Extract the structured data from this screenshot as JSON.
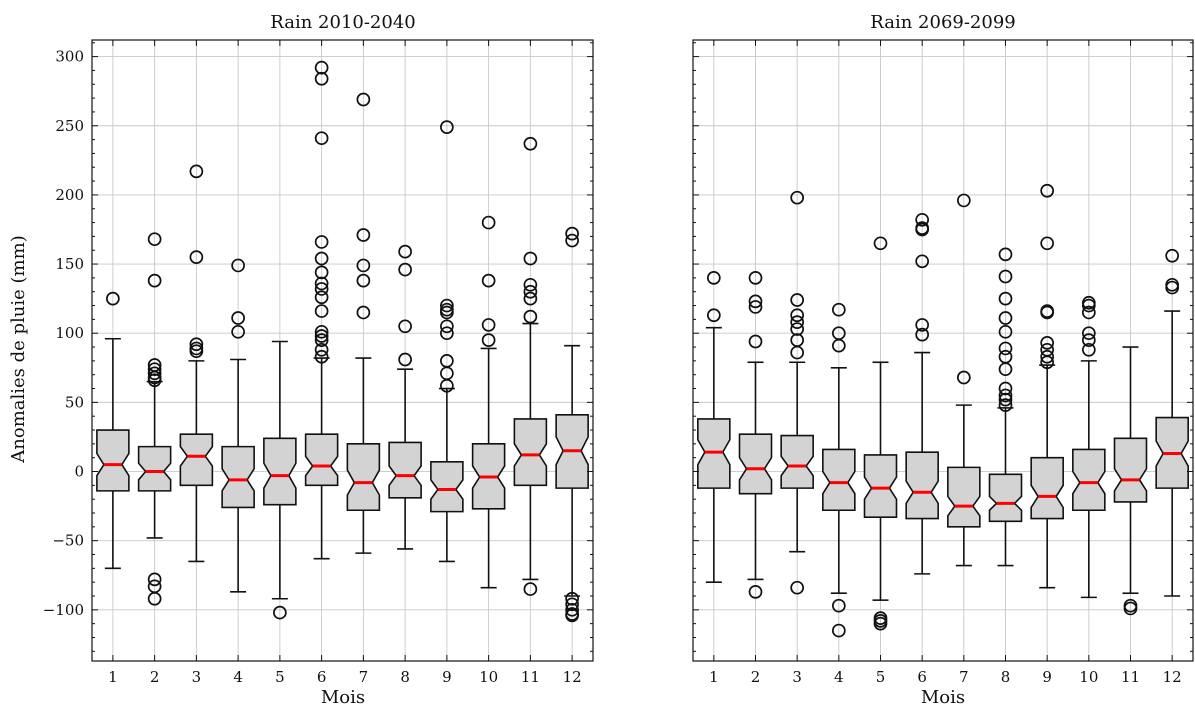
{
  "chart_data": [
    {
      "type": "box",
      "title": "Rain 2010-2040",
      "xlabel": "Mois",
      "ylabel": "Anomalies de pluie (mm)",
      "ylim": [
        -137,
        312
      ],
      "yticks": [
        -100,
        -50,
        0,
        50,
        100,
        150,
        200,
        250,
        300
      ],
      "ytick_labels": [
        "−100",
        "−50",
        "0",
        "50",
        "100",
        "150",
        "200",
        "250",
        "300"
      ],
      "categories": [
        "1",
        "2",
        "3",
        "4",
        "5",
        "6",
        "7",
        "8",
        "9",
        "10",
        "11",
        "12"
      ],
      "grid": true,
      "notched": true,
      "box_color": "#d3d3d3",
      "median_color": "#ff0000",
      "boxes": [
        {
          "whislo": -70,
          "q1": -14,
          "med": 5,
          "q3": 30,
          "whishi": 96,
          "notch": [
            -3,
            13
          ],
          "fliers": [
            125
          ]
        },
        {
          "whislo": -48,
          "q1": -14,
          "med": 0,
          "q3": 18,
          "whishi": 65,
          "notch": [
            -6,
            6
          ],
          "fliers": [
            168,
            138,
            77,
            74,
            71,
            68,
            66,
            -78,
            -83,
            -92
          ]
        },
        {
          "whislo": -65,
          "q1": -10,
          "med": 11,
          "q3": 27,
          "whishi": 80,
          "notch": [
            4,
            18
          ],
          "fliers": [
            217,
            155,
            92,
            89,
            87
          ]
        },
        {
          "whislo": -87,
          "q1": -26,
          "med": -6,
          "q3": 18,
          "whishi": 81,
          "notch": [
            -14,
            2
          ],
          "fliers": [
            149,
            111,
            101
          ]
        },
        {
          "whislo": -92,
          "q1": -24,
          "med": -3,
          "q3": 24,
          "whishi": 94,
          "notch": [
            -12,
            6
          ],
          "fliers": [
            -102
          ]
        },
        {
          "whislo": -63,
          "q1": -10,
          "med": 4,
          "q3": 27,
          "whishi": 82,
          "notch": [
            -3,
            11
          ],
          "fliers": [
            292,
            284,
            241,
            166,
            154,
            144,
            136,
            132,
            126,
            116,
            101,
            98,
            95,
            88,
            83
          ]
        },
        {
          "whislo": -59,
          "q1": -28,
          "med": -8,
          "q3": 20,
          "whishi": 82,
          "notch": [
            -17,
            1
          ],
          "fliers": [
            269,
            171,
            149,
            138,
            115
          ]
        },
        {
          "whislo": -56,
          "q1": -19,
          "med": -3,
          "q3": 21,
          "whishi": 74,
          "notch": [
            -10,
            4
          ],
          "fliers": [
            159,
            146,
            105,
            81
          ]
        },
        {
          "whislo": -65,
          "q1": -29,
          "med": -13,
          "q3": 7,
          "whishi": 60,
          "notch": [
            -20,
            -6
          ],
          "fliers": [
            249,
            120,
            117,
            115,
            105,
            100,
            80,
            71,
            62
          ]
        },
        {
          "whislo": -84,
          "q1": -27,
          "med": -4,
          "q3": 20,
          "whishi": 89,
          "notch": [
            -12,
            4
          ],
          "fliers": [
            180,
            138,
            106,
            95
          ]
        },
        {
          "whislo": -78,
          "q1": -10,
          "med": 12,
          "q3": 38,
          "whishi": 107,
          "notch": [
            4,
            20
          ],
          "fliers": [
            237,
            154,
            135,
            130,
            125,
            112,
            -85
          ]
        },
        {
          "whislo": -90,
          "q1": -12,
          "med": 15,
          "q3": 41,
          "whishi": 91,
          "notch": [
            5,
            25
          ],
          "fliers": [
            172,
            167,
            -92,
            -96,
            -100,
            -103,
            -104
          ]
        }
      ]
    },
    {
      "type": "box",
      "title": "Rain 2069-2099",
      "xlabel": "Mois",
      "ylim": [
        -137,
        312
      ],
      "yticks": [
        -100,
        -50,
        0,
        50,
        100,
        150,
        200,
        250,
        300
      ],
      "categories": [
        "1",
        "2",
        "3",
        "4",
        "5",
        "6",
        "7",
        "8",
        "9",
        "10",
        "11",
        "12"
      ],
      "grid": true,
      "notched": true,
      "box_color": "#d3d3d3",
      "median_color": "#ff0000",
      "boxes": [
        {
          "whislo": -80,
          "q1": -12,
          "med": 14,
          "q3": 38,
          "whishi": 104,
          "notch": [
            5,
            23
          ],
          "fliers": [
            140,
            113
          ]
        },
        {
          "whislo": -78,
          "q1": -16,
          "med": 2,
          "q3": 27,
          "whishi": 79,
          "notch": [
            -6,
            10
          ],
          "fliers": [
            140,
            123,
            119,
            94,
            -87
          ]
        },
        {
          "whislo": -58,
          "q1": -12,
          "med": 4,
          "q3": 26,
          "whishi": 79,
          "notch": [
            -3,
            11
          ],
          "fliers": [
            198,
            124,
            113,
            108,
            103,
            95,
            86,
            -84
          ]
        },
        {
          "whislo": -88,
          "q1": -28,
          "med": -8,
          "q3": 16,
          "whishi": 75,
          "notch": [
            -16,
            0
          ],
          "fliers": [
            117,
            100,
            91,
            -97,
            -115
          ]
        },
        {
          "whislo": -93,
          "q1": -33,
          "med": -12,
          "q3": 12,
          "whishi": 79,
          "notch": [
            -20,
            -4
          ],
          "fliers": [
            165,
            -106,
            -108,
            -110
          ]
        },
        {
          "whislo": -74,
          "q1": -34,
          "med": -15,
          "q3": 14,
          "whishi": 86,
          "notch": [
            -23,
            -7
          ],
          "fliers": [
            182,
            176,
            175,
            152,
            106,
            99
          ]
        },
        {
          "whislo": -68,
          "q1": -40,
          "med": -25,
          "q3": 3,
          "whishi": 48,
          "notch": [
            -32,
            -18
          ],
          "fliers": [
            196,
            68
          ]
        },
        {
          "whislo": -68,
          "q1": -36,
          "med": -23,
          "q3": -2,
          "whishi": 46,
          "notch": [
            -28,
            -18
          ],
          "fliers": [
            157,
            141,
            125,
            111,
            101,
            89,
            83,
            74,
            60,
            55,
            52,
            48
          ]
        },
        {
          "whislo": -84,
          "q1": -34,
          "med": -18,
          "q3": 10,
          "whishi": 77,
          "notch": [
            -26,
            -10
          ],
          "fliers": [
            203,
            165,
            116,
            115,
            93,
            88,
            83,
            79
          ]
        },
        {
          "whislo": -91,
          "q1": -28,
          "med": -8,
          "q3": 16,
          "whishi": 80,
          "notch": [
            -16,
            0
          ],
          "fliers": [
            122,
            120,
            115,
            100,
            95,
            88
          ]
        },
        {
          "whislo": -88,
          "q1": -22,
          "med": -6,
          "q3": 24,
          "whishi": 90,
          "notch": [
            -14,
            2
          ],
          "fliers": [
            -97,
            -99
          ]
        },
        {
          "whislo": -90,
          "q1": -12,
          "med": 13,
          "q3": 39,
          "whishi": 116,
          "notch": [
            4,
            22
          ],
          "fliers": [
            156,
            135,
            133
          ]
        }
      ]
    }
  ]
}
